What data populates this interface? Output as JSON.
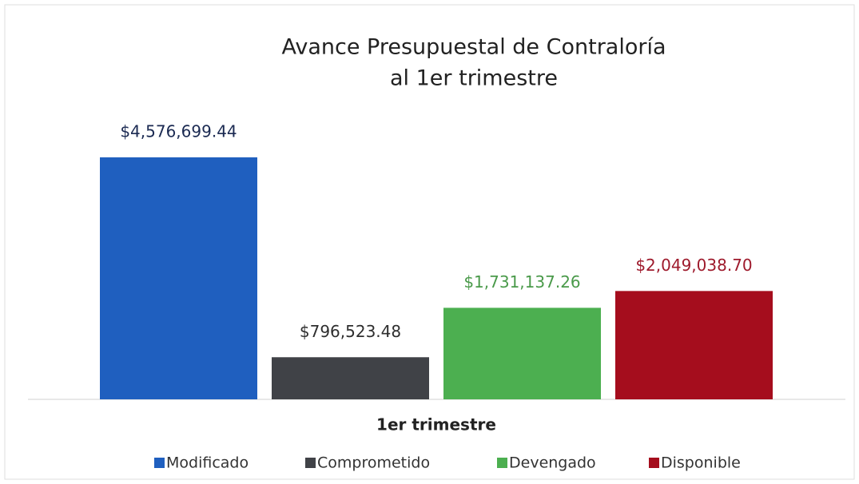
{
  "chart_data": {
    "type": "bar",
    "title": [
      "Avance Presupuestal de Contraloría",
      "al 1er trimestre"
    ],
    "categories": [
      "1er trimestre"
    ],
    "series": [
      {
        "name": "Modificado",
        "color": "#1f5fbf",
        "label_color": "#1b2a52",
        "values": [
          4576699.44
        ],
        "value_labels": [
          "$4,576,699.44"
        ]
      },
      {
        "name": "Comprometido",
        "color": "#404247",
        "label_color": "#2e2e2e",
        "values": [
          796523.48
        ],
        "value_labels": [
          "$796,523.48"
        ]
      },
      {
        "name": "Devengado",
        "color": "#4caf50",
        "label_color": "#4a9a4a",
        "values": [
          1731137.26
        ],
        "value_labels": [
          "$1,731,137.26"
        ]
      },
      {
        "name": "Disponible",
        "color": "#a50d1d",
        "label_color": "#9e1a2c",
        "values": [
          2049038.7
        ],
        "value_labels": [
          "$2,049,038.70"
        ]
      }
    ],
    "ylim": [
      0,
      5000000
    ],
    "legend": "bottom"
  }
}
